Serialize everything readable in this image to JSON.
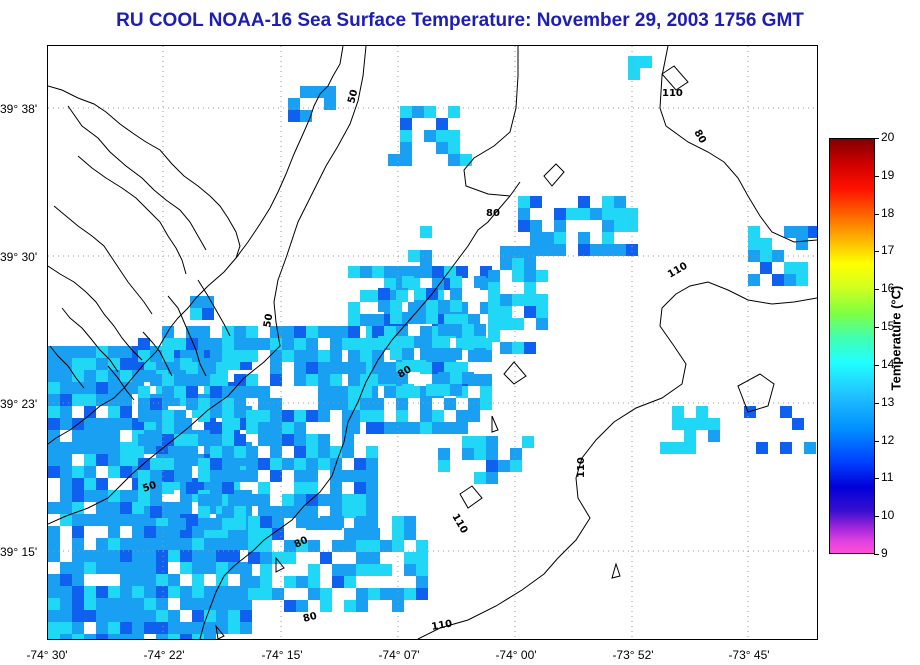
{
  "title": "RU COOL  NOAA-16  Sea Surface Temperature:  November 29, 2003 1756 GMT",
  "lat_labels": [
    "39° 38'",
    "39° 30'",
    "39° 23'",
    "39° 15'"
  ],
  "lon_labels": [
    "-74° 30'",
    "-74° 22'",
    "-74° 15'",
    "-74° 07'",
    "-74° 00'",
    "-73° 52'",
    "-73° 45'"
  ],
  "contour_labels": [
    "110",
    "80",
    "50",
    "50",
    "80",
    "110",
    "80",
    "50",
    "110",
    "110",
    "80",
    "80",
    "110"
  ],
  "colorbar": {
    "title": "Temperature (°C)",
    "ticks": [
      "20",
      "19",
      "18",
      "17",
      "16",
      "15",
      "14",
      "13",
      "12",
      "11",
      "10",
      "9"
    ],
    "min": 9,
    "max": 20
  },
  "colors": {
    "title": "#1e1eb4",
    "sst_12c": "#1aa0f2",
    "sst_13c": "#20d8f5",
    "sst_11c": "#1060f0"
  }
}
